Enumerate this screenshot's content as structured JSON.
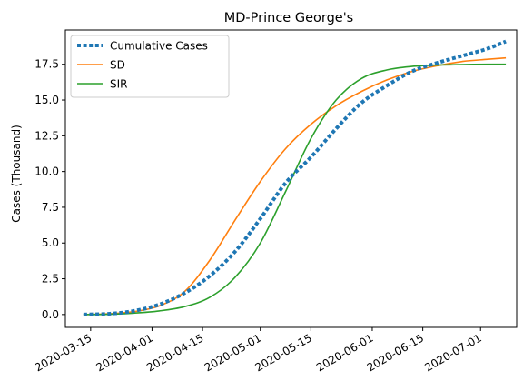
{
  "chart_data": {
    "type": "line",
    "title": "MD-Prince George's",
    "xlabel": "",
    "ylabel": "Cases (Thousand)",
    "xlim": [
      "2020-03-08",
      "2020-07-11"
    ],
    "ylim": [
      -0.9,
      19.9
    ],
    "x_ticks": [
      "2020-03-15",
      "2020-04-01",
      "2020-04-15",
      "2020-05-01",
      "2020-05-15",
      "2020-06-01",
      "2020-06-15",
      "2020-07-01"
    ],
    "y_ticks": [
      "0.0",
      "2.5",
      "5.0",
      "7.5",
      "10.0",
      "12.5",
      "15.0",
      "17.5"
    ],
    "grid": false,
    "legend": {
      "position": "upper left",
      "entries": [
        "Cumulative Cases",
        "SD",
        "SIR"
      ]
    },
    "colors": {
      "Cumulative Cases": "#1f77b4",
      "SD": "#ff7f0e",
      "SIR": "#2ca02c"
    },
    "series": [
      {
        "name": "Cumulative Cases",
        "style": "dotted",
        "x": [
          "2020-03-13",
          "2020-03-20",
          "2020-03-27",
          "2020-04-03",
          "2020-04-10",
          "2020-04-17",
          "2020-04-24",
          "2020-05-01",
          "2020-05-08",
          "2020-05-15",
          "2020-05-22",
          "2020-05-29",
          "2020-06-05",
          "2020-06-12",
          "2020-06-19",
          "2020-06-26",
          "2020-07-03",
          "2020-07-08"
        ],
        "y": [
          0.0,
          0.05,
          0.25,
          0.7,
          1.5,
          2.7,
          4.4,
          6.7,
          9.2,
          11.0,
          13.0,
          14.8,
          16.0,
          17.0,
          17.6,
          18.1,
          18.6,
          19.1
        ]
      },
      {
        "name": "SD",
        "style": "solid",
        "x": [
          "2020-03-13",
          "2020-03-20",
          "2020-03-27",
          "2020-04-03",
          "2020-04-10",
          "2020-04-17",
          "2020-04-24",
          "2020-05-01",
          "2020-05-08",
          "2020-05-15",
          "2020-05-22",
          "2020-05-29",
          "2020-06-05",
          "2020-06-12",
          "2020-06-19",
          "2020-06-26",
          "2020-07-03",
          "2020-07-08"
        ],
        "y": [
          0.0,
          0.05,
          0.2,
          0.6,
          1.6,
          3.8,
          6.6,
          9.3,
          11.6,
          13.3,
          14.6,
          15.6,
          16.4,
          17.0,
          17.4,
          17.7,
          17.85,
          17.95
        ]
      },
      {
        "name": "SIR",
        "style": "solid",
        "x": [
          "2020-03-13",
          "2020-03-20",
          "2020-03-27",
          "2020-04-03",
          "2020-04-10",
          "2020-04-17",
          "2020-04-24",
          "2020-05-01",
          "2020-05-08",
          "2020-05-15",
          "2020-05-22",
          "2020-05-29",
          "2020-06-05",
          "2020-06-12",
          "2020-06-19",
          "2020-06-26",
          "2020-07-03",
          "2020-07-08"
        ],
        "y": [
          0.0,
          0.02,
          0.1,
          0.25,
          0.55,
          1.2,
          2.6,
          5.0,
          8.6,
          12.3,
          15.0,
          16.5,
          17.1,
          17.35,
          17.45,
          17.48,
          17.5,
          17.5
        ]
      }
    ]
  }
}
